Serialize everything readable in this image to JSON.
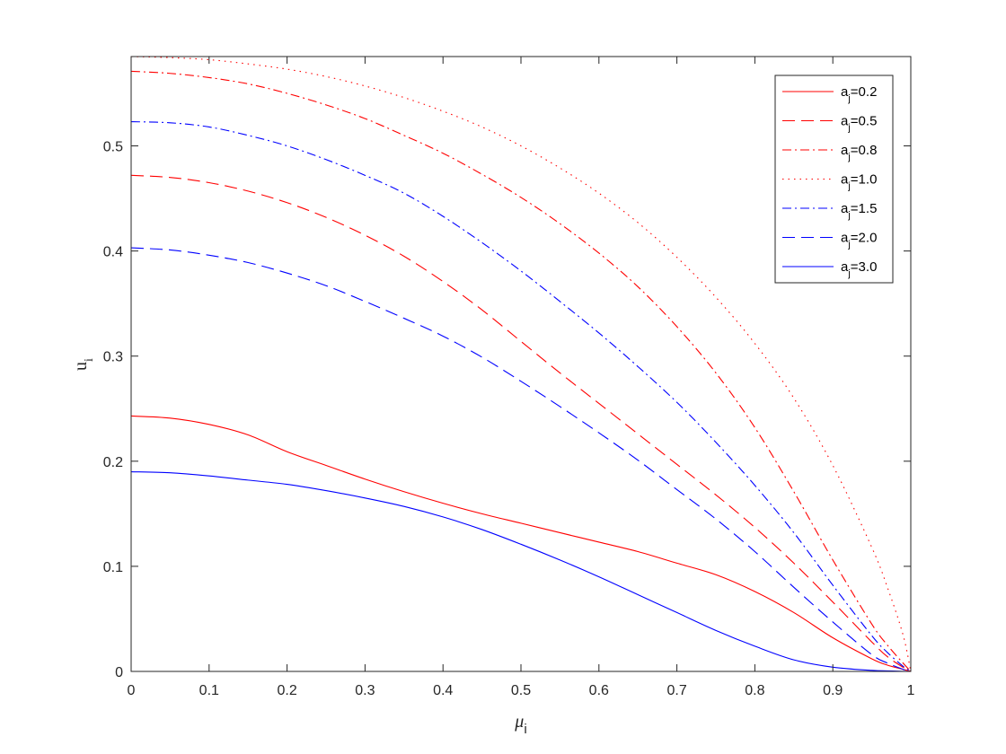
{
  "chart_data": {
    "type": "line",
    "title": "",
    "xlabel": "μ",
    "xlabel_sub": "i",
    "ylabel": "u",
    "ylabel_sub": "i",
    "xlim": [
      0,
      1
    ],
    "ylim": [
      0,
      0.585
    ],
    "xticks": [
      0,
      0.1,
      0.2,
      0.3,
      0.4,
      0.5,
      0.6,
      0.7,
      0.8,
      0.9,
      1
    ],
    "xtick_labels": [
      "0",
      "0.1",
      "0.2",
      "0.3",
      "0.4",
      "0.5",
      "0.6",
      "0.7",
      "0.8",
      "0.9",
      "1"
    ],
    "yticks": [
      0,
      0.1,
      0.2,
      0.3,
      0.4,
      0.5
    ],
    "ytick_labels": [
      "0",
      "0.1",
      "0.2",
      "0.3",
      "0.4",
      "0.5"
    ],
    "grid": false,
    "legend_position": "top-right",
    "x": [
      0,
      0.05,
      0.1,
      0.15,
      0.2,
      0.25,
      0.3,
      0.35,
      0.4,
      0.45,
      0.5,
      0.55,
      0.6,
      0.65,
      0.7,
      0.75,
      0.8,
      0.85,
      0.9,
      0.95,
      0.97,
      0.99,
      1.0
    ],
    "series": [
      {
        "name": "a_j=0.2",
        "legend_main": "a",
        "legend_sub": "j",
        "legend_value": "=0.2",
        "color": "#ff0000",
        "style": "solid",
        "values": [
          0.243,
          0.241,
          0.235,
          0.225,
          0.209,
          0.196,
          0.183,
          0.171,
          0.16,
          0.15,
          0.141,
          0.132,
          0.123,
          0.114,
          0.103,
          0.092,
          0.076,
          0.056,
          0.032,
          0.012,
          0.006,
          0.002,
          0
        ]
      },
      {
        "name": "a_j=0.5",
        "legend_main": "a",
        "legend_sub": "j",
        "legend_value": "=0.5",
        "color": "#ff0000",
        "style": "dashed",
        "values": [
          0.472,
          0.47,
          0.465,
          0.457,
          0.446,
          0.432,
          0.415,
          0.395,
          0.371,
          0.344,
          0.314,
          0.284,
          0.255,
          0.226,
          0.197,
          0.168,
          0.137,
          0.103,
          0.066,
          0.028,
          0.014,
          0.004,
          0
        ]
      },
      {
        "name": "a_j=0.8",
        "legend_main": "a",
        "legend_sub": "j",
        "legend_value": "=0.8",
        "color": "#ff0000",
        "style": "dashdot",
        "values": [
          0.571,
          0.569,
          0.565,
          0.559,
          0.55,
          0.539,
          0.526,
          0.51,
          0.493,
          0.473,
          0.451,
          0.426,
          0.398,
          0.366,
          0.328,
          0.284,
          0.232,
          0.171,
          0.106,
          0.045,
          0.025,
          0.008,
          0
        ]
      },
      {
        "name": "a_j=1.0",
        "legend_main": "a",
        "legend_sub": "j",
        "legend_value": "=1.0",
        "color": "#ff0000",
        "style": "dotted",
        "values": [
          0.585,
          0.584,
          0.582,
          0.578,
          0.573,
          0.566,
          0.557,
          0.546,
          0.533,
          0.518,
          0.5,
          0.479,
          0.455,
          0.427,
          0.394,
          0.356,
          0.312,
          0.26,
          0.196,
          0.118,
          0.08,
          0.035,
          0
        ]
      },
      {
        "name": "a_j=1.5",
        "legend_main": "a",
        "legend_sub": "j",
        "legend_value": "=1.5",
        "color": "#0000ff",
        "style": "dashdot",
        "values": [
          0.523,
          0.522,
          0.518,
          0.51,
          0.5,
          0.487,
          0.472,
          0.455,
          0.433,
          0.408,
          0.381,
          0.352,
          0.322,
          0.29,
          0.256,
          0.218,
          0.177,
          0.132,
          0.082,
          0.034,
          0.018,
          0.005,
          0
        ]
      },
      {
        "name": "a_j=2.0",
        "legend_main": "a",
        "legend_sub": "j",
        "legend_value": "=2.0",
        "color": "#0000ff",
        "style": "dashed",
        "values": [
          0.403,
          0.401,
          0.396,
          0.389,
          0.379,
          0.367,
          0.352,
          0.336,
          0.319,
          0.299,
          0.276,
          0.252,
          0.227,
          0.201,
          0.173,
          0.145,
          0.114,
          0.08,
          0.047,
          0.016,
          0.008,
          0.002,
          0
        ]
      },
      {
        "name": "a_j=3.0",
        "legend_main": "a",
        "legend_sub": "j",
        "legend_value": "=3.0",
        "color": "#0000ff",
        "style": "solid",
        "values": [
          0.19,
          0.189,
          0.186,
          0.182,
          0.178,
          0.172,
          0.165,
          0.157,
          0.147,
          0.135,
          0.121,
          0.106,
          0.09,
          0.073,
          0.056,
          0.039,
          0.024,
          0.011,
          0.004,
          0.001,
          0.0005,
          0.0001,
          0
        ]
      }
    ]
  }
}
